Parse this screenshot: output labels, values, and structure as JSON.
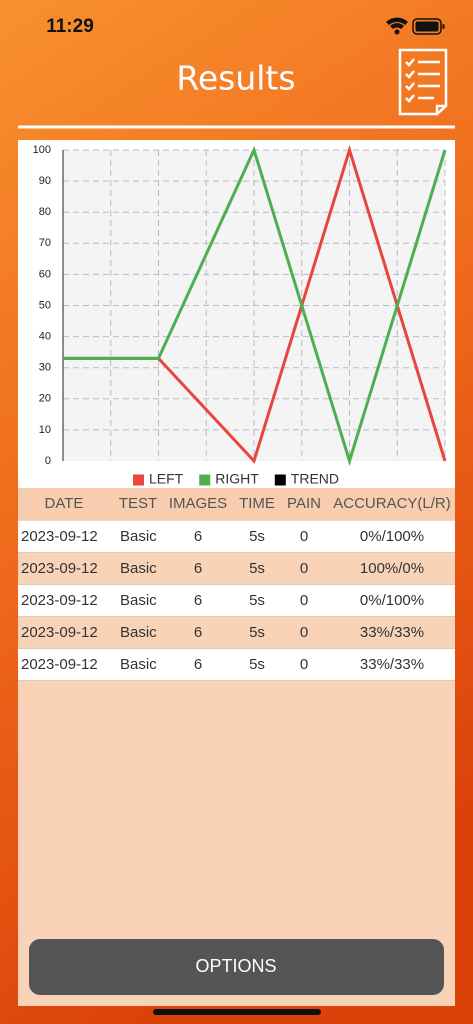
{
  "status_bar": {
    "time": "11:29"
  },
  "header": {
    "title": "Results"
  },
  "chart_data": {
    "type": "line",
    "categories": [
      null,
      null,
      null,
      null,
      null
    ],
    "series": [
      {
        "name": "LEFT",
        "color": "#e8453c",
        "values": [
          33,
          33,
          0,
          100,
          0
        ]
      },
      {
        "name": "RIGHT",
        "color": "#4caf50",
        "values": [
          33,
          33,
          100,
          0,
          100
        ]
      },
      {
        "name": "TREND",
        "color": "#000000",
        "values": [
          null,
          null,
          null,
          null,
          null
        ]
      }
    ],
    "ylim": [
      0,
      100
    ],
    "yticks": [
      0,
      10,
      20,
      30,
      40,
      50,
      60,
      70,
      80,
      90,
      100
    ],
    "grid": true,
    "legend": "bottom"
  },
  "table": {
    "headers": [
      "DATE",
      "TEST",
      "IMAGES",
      "TIME",
      "PAIN",
      "ACCURACY(L/R)"
    ],
    "rows": [
      [
        "2023-09-12",
        "Basic",
        "6",
        "5s",
        "0",
        "0%/100%"
      ],
      [
        "2023-09-12",
        "Basic",
        "6",
        "5s",
        "0",
        "100%/0%"
      ],
      [
        "2023-09-12",
        "Basic",
        "6",
        "5s",
        "0",
        "0%/100%"
      ],
      [
        "2023-09-12",
        "Basic",
        "6",
        "5s",
        "0",
        "33%/33%"
      ],
      [
        "2023-09-12",
        "Basic",
        "6",
        "5s",
        "0",
        "33%/33%"
      ]
    ]
  },
  "button": {
    "label": "OPTIONS"
  }
}
